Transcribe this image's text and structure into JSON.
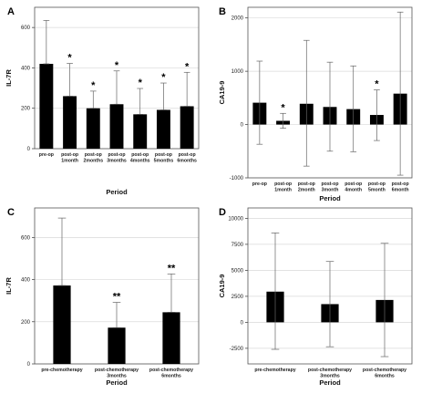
{
  "chart_data": [
    {
      "panel": "A",
      "type": "bar",
      "xlabel": "Period",
      "ylabel": "IL-7R",
      "ylim": [
        0,
        700
      ],
      "yticks": [
        0,
        200,
        400,
        600
      ],
      "grid": true,
      "bar_color": "#000000",
      "categories": [
        [
          "pre-op"
        ],
        [
          "post-op",
          "1month"
        ],
        [
          "post-op",
          "2months"
        ],
        [
          "post-op",
          "3months"
        ],
        [
          "post-op",
          "4months"
        ],
        [
          "post-op",
          "5months"
        ],
        [
          "post-op",
          "6months"
        ]
      ],
      "values": [
        420,
        260,
        200,
        220,
        170,
        192,
        210
      ],
      "error_upper": [
        635,
        422,
        285,
        385,
        298,
        325,
        378
      ],
      "error_lower": [
        420,
        260,
        200,
        220,
        170,
        192,
        210
      ],
      "annotations": [
        "",
        "*",
        "*",
        "*",
        "*",
        "*",
        "*"
      ]
    },
    {
      "panel": "B",
      "type": "bar",
      "xlabel": "Period",
      "ylabel": "CA19-9",
      "ylim": [
        -1000,
        2200
      ],
      "yticks": [
        -1000,
        0,
        1000,
        2000
      ],
      "grid": true,
      "bar_color": "#000000",
      "categories": [
        [
          "pre-op"
        ],
        [
          "post-op",
          "1month"
        ],
        [
          "post-op",
          "2month"
        ],
        [
          "post-op",
          "3month"
        ],
        [
          "post-op",
          "4month"
        ],
        [
          "post-op",
          "5month"
        ],
        [
          "post-op",
          "6month"
        ]
      ],
      "values": [
        410,
        70,
        390,
        330,
        290,
        180,
        580
      ],
      "error_upper": [
        1190,
        210,
        1580,
        1170,
        1100,
        650,
        2110
      ],
      "error_lower": [
        -370,
        -70,
        -780,
        -500,
        -510,
        -300,
        -950
      ],
      "annotations": [
        "",
        "*",
        "",
        "",
        "",
        "*",
        ""
      ]
    },
    {
      "panel": "C",
      "type": "bar",
      "xlabel": "Period",
      "ylabel": "IL-7R",
      "ylim": [
        0,
        740
      ],
      "yticks": [
        0,
        200,
        400,
        600
      ],
      "grid": true,
      "bar_color": "#000000",
      "categories": [
        [
          "pre-chemotherapy"
        ],
        [
          "post-chemotherapy",
          "3months"
        ],
        [
          "post-chemotherapy",
          "6months"
        ]
      ],
      "values": [
        372,
        172,
        245
      ],
      "error_upper": [
        692,
        292,
        427
      ],
      "error_lower": [
        372,
        172,
        245
      ],
      "annotations": [
        "",
        "**",
        "**"
      ]
    },
    {
      "panel": "D",
      "type": "bar",
      "xlabel": "Period",
      "ylabel": "CA19-9",
      "ylim": [
        -4000,
        11000
      ],
      "yticks": [
        -2500,
        0,
        2500,
        5000,
        7500,
        10000
      ],
      "grid": true,
      "bar_color": "#000000",
      "categories": [
        [
          "pre-chemotherapy"
        ],
        [
          "post-chemotherapy",
          "3months"
        ],
        [
          "post-chemotherapy",
          "6months"
        ]
      ],
      "values": [
        2950,
        1750,
        2150
      ],
      "error_upper": [
        8600,
        5850,
        7600
      ],
      "error_lower": [
        -2600,
        -2350,
        -3300
      ],
      "annotations": [
        "",
        "",
        ""
      ]
    }
  ]
}
